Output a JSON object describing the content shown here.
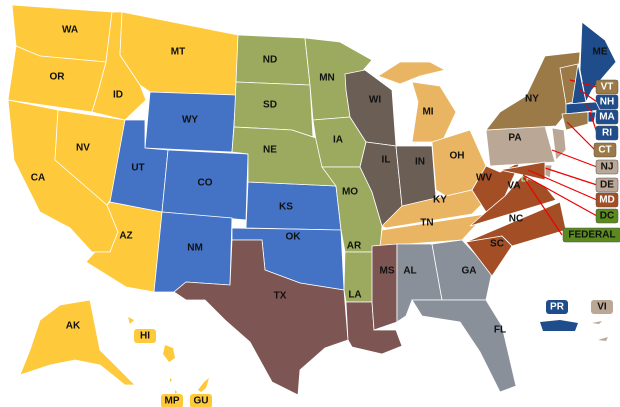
{
  "groups": {
    "yellow": "#FFC93C",
    "blue": "#4472C4",
    "olive": "#9BAA5E",
    "taupe": "#6B5E55",
    "orange": "#EAB562",
    "mauve": "#7D5654",
    "gray": "#89909A",
    "rust": "#A34E25",
    "tan": "#BBA796",
    "gold": "#9B7A47",
    "navy": "#1F4C8A",
    "green": "#5B8A1E"
  },
  "states": [
    {
      "abbr": "WA",
      "group": "yellow"
    },
    {
      "abbr": "OR",
      "group": "yellow"
    },
    {
      "abbr": "CA",
      "group": "yellow"
    },
    {
      "abbr": "NV",
      "group": "yellow"
    },
    {
      "abbr": "ID",
      "group": "yellow"
    },
    {
      "abbr": "MT",
      "group": "yellow"
    },
    {
      "abbr": "AZ",
      "group": "yellow"
    },
    {
      "abbr": "AK",
      "group": "yellow"
    },
    {
      "abbr": "WY",
      "group": "blue"
    },
    {
      "abbr": "UT",
      "group": "blue"
    },
    {
      "abbr": "CO",
      "group": "blue"
    },
    {
      "abbr": "NM",
      "group": "blue"
    },
    {
      "abbr": "KS",
      "group": "blue"
    },
    {
      "abbr": "OK",
      "group": "blue"
    },
    {
      "abbr": "ND",
      "group": "olive"
    },
    {
      "abbr": "SD",
      "group": "olive"
    },
    {
      "abbr": "NE",
      "group": "olive"
    },
    {
      "abbr": "MN",
      "group": "olive"
    },
    {
      "abbr": "IA",
      "group": "olive"
    },
    {
      "abbr": "MO",
      "group": "olive"
    },
    {
      "abbr": "AR",
      "group": "olive"
    },
    {
      "abbr": "WI",
      "group": "taupe"
    },
    {
      "abbr": "IL",
      "group": "taupe"
    },
    {
      "abbr": "IN",
      "group": "taupe"
    },
    {
      "abbr": "MI",
      "group": "orange"
    },
    {
      "abbr": "OH",
      "group": "orange"
    },
    {
      "abbr": "KY",
      "group": "orange"
    },
    {
      "abbr": "TN",
      "group": "orange"
    },
    {
      "abbr": "TX",
      "group": "mauve"
    },
    {
      "abbr": "LA",
      "group": "mauve"
    },
    {
      "abbr": "MS",
      "group": "mauve"
    },
    {
      "abbr": "AL",
      "group": "gray"
    },
    {
      "abbr": "GA",
      "group": "gray"
    },
    {
      "abbr": "FL",
      "group": "gray"
    },
    {
      "abbr": "WV",
      "group": "rust"
    },
    {
      "abbr": "VA",
      "group": "rust"
    },
    {
      "abbr": "NC",
      "group": "rust"
    },
    {
      "abbr": "SC",
      "group": "rust"
    },
    {
      "abbr": "PA",
      "group": "tan"
    },
    {
      "abbr": "NY",
      "group": "gold"
    },
    {
      "abbr": "ME",
      "group": "navy"
    }
  ],
  "small_states": [
    {
      "abbr": "VT",
      "group": "gold"
    },
    {
      "abbr": "NH",
      "group": "navy"
    },
    {
      "abbr": "MA",
      "group": "navy"
    },
    {
      "abbr": "RI",
      "group": "navy"
    },
    {
      "abbr": "CT",
      "group": "gold"
    },
    {
      "abbr": "NJ",
      "group": "tan"
    },
    {
      "abbr": "DE",
      "group": "tan"
    },
    {
      "abbr": "MD",
      "group": "rust"
    },
    {
      "abbr": "DC",
      "group": "green"
    },
    {
      "abbr": "FEDERAL",
      "group": "green"
    }
  ],
  "territories": [
    {
      "abbr": "HI",
      "group": "yellow"
    },
    {
      "abbr": "MP",
      "group": "yellow"
    },
    {
      "abbr": "GU",
      "group": "yellow"
    },
    {
      "abbr": "PR",
      "group": "navy"
    },
    {
      "abbr": "VI",
      "group": "tan"
    }
  ]
}
